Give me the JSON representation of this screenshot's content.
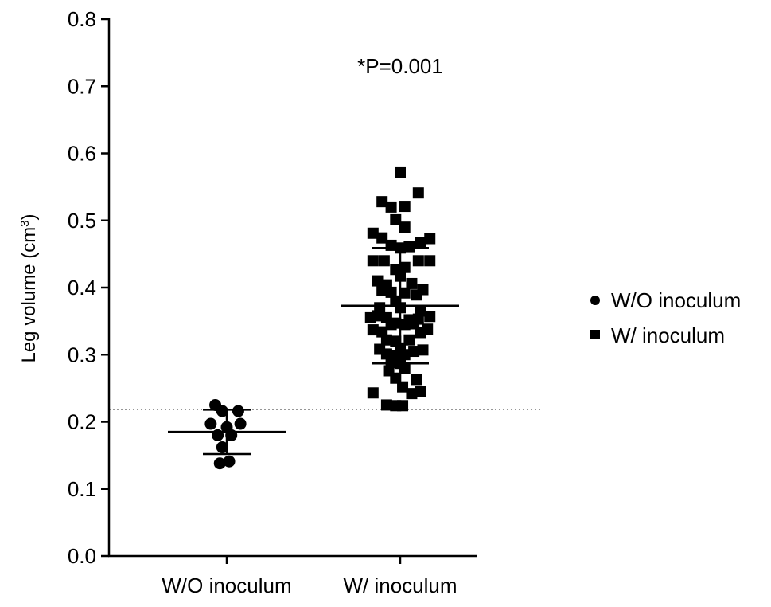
{
  "chart_data": {
    "type": "scatter",
    "subtype": "dot-plot with mean and standard deviation",
    "title": "",
    "annotation": "*P=0.001",
    "xlabel": "",
    "ylabel_main": "Leg volume (cm",
    "ylabel_sup": "3",
    "ylabel_close": ")",
    "ylim": [
      0.0,
      0.8
    ],
    "yticks": [
      "0.0",
      "0.1",
      "0.2",
      "0.3",
      "0.4",
      "0.5",
      "0.6",
      "0.7",
      "0.8"
    ],
    "categories": [
      "W/O inoculum",
      "W/ inoculum"
    ],
    "threshold_line": 0.218,
    "legend": {
      "position": "right",
      "entries": [
        {
          "label": "W/O inoculum",
          "marker": "circle"
        },
        {
          "label": "W/ inoculum",
          "marker": "square"
        }
      ]
    },
    "series": [
      {
        "name": "W/O inoculum",
        "marker": "circle",
        "mean": 0.185,
        "sd_upper": 0.218,
        "sd_lower": 0.152,
        "points": [
          {
            "offset": -0.38,
            "y": 0.225
          },
          {
            "offset": -0.15,
            "y": 0.216
          },
          {
            "offset": 0.38,
            "y": 0.216
          },
          {
            "offset": -0.53,
            "y": 0.197
          },
          {
            "offset": 0.0,
            "y": 0.192
          },
          {
            "offset": 0.45,
            "y": 0.197
          },
          {
            "offset": -0.3,
            "y": 0.18
          },
          {
            "offset": 0.15,
            "y": 0.18
          },
          {
            "offset": -0.15,
            "y": 0.162
          },
          {
            "offset": -0.23,
            "y": 0.138
          },
          {
            "offset": 0.08,
            "y": 0.141
          }
        ]
      },
      {
        "name": "W/ inoculum",
        "marker": "square",
        "mean": 0.373,
        "sd_upper": 0.459,
        "sd_lower": 0.287,
        "points": [
          {
            "offset": 0.0,
            "y": 0.571
          },
          {
            "offset": 0.6,
            "y": 0.541
          },
          {
            "offset": -0.6,
            "y": 0.528
          },
          {
            "offset": -0.3,
            "y": 0.52
          },
          {
            "offset": 0.15,
            "y": 0.521
          },
          {
            "offset": -0.15,
            "y": 0.501
          },
          {
            "offset": 0.15,
            "y": 0.49
          },
          {
            "offset": -0.9,
            "y": 0.481
          },
          {
            "offset": 0.98,
            "y": 0.473
          },
          {
            "offset": -0.6,
            "y": 0.474
          },
          {
            "offset": 0.68,
            "y": 0.467
          },
          {
            "offset": -0.3,
            "y": 0.463
          },
          {
            "offset": 0.0,
            "y": 0.459
          },
          {
            "offset": 0.3,
            "y": 0.461
          },
          {
            "offset": -0.9,
            "y": 0.44
          },
          {
            "offset": -0.53,
            "y": 0.44
          },
          {
            "offset": 0.6,
            "y": 0.44
          },
          {
            "offset": 0.98,
            "y": 0.44
          },
          {
            "offset": -0.15,
            "y": 0.427
          },
          {
            "offset": 0.15,
            "y": 0.43
          },
          {
            "offset": -0.75,
            "y": 0.41
          },
          {
            "offset": 0.0,
            "y": 0.417
          },
          {
            "offset": -0.45,
            "y": 0.404
          },
          {
            "offset": 0.38,
            "y": 0.406
          },
          {
            "offset": 0.75,
            "y": 0.397
          },
          {
            "offset": -0.6,
            "y": 0.396
          },
          {
            "offset": -0.3,
            "y": 0.393
          },
          {
            "offset": 0.15,
            "y": 0.392
          },
          {
            "offset": 0.53,
            "y": 0.389
          },
          {
            "offset": -0.15,
            "y": 0.38
          },
          {
            "offset": 0.0,
            "y": 0.37
          },
          {
            "offset": -0.68,
            "y": 0.37
          },
          {
            "offset": 0.68,
            "y": 0.365
          },
          {
            "offset": -0.98,
            "y": 0.355
          },
          {
            "offset": -0.75,
            "y": 0.358
          },
          {
            "offset": -0.45,
            "y": 0.355
          },
          {
            "offset": 0.3,
            "y": 0.352
          },
          {
            "offset": 0.6,
            "y": 0.353
          },
          {
            "offset": 0.98,
            "y": 0.357
          },
          {
            "offset": -0.3,
            "y": 0.345
          },
          {
            "offset": -0.15,
            "y": 0.347
          },
          {
            "offset": 0.15,
            "y": 0.345
          },
          {
            "offset": 0.45,
            "y": 0.346
          },
          {
            "offset": -0.9,
            "y": 0.337
          },
          {
            "offset": -0.6,
            "y": 0.334
          },
          {
            "offset": 0.68,
            "y": 0.333
          },
          {
            "offset": 0.9,
            "y": 0.338
          },
          {
            "offset": -0.45,
            "y": 0.322
          },
          {
            "offset": -0.15,
            "y": 0.32
          },
          {
            "offset": 0.3,
            "y": 0.322
          },
          {
            "offset": -0.68,
            "y": 0.308
          },
          {
            "offset": 0.0,
            "y": 0.31
          },
          {
            "offset": 0.45,
            "y": 0.305
          },
          {
            "offset": 0.75,
            "y": 0.307
          },
          {
            "offset": -0.45,
            "y": 0.301
          },
          {
            "offset": -0.15,
            "y": 0.298
          },
          {
            "offset": 0.15,
            "y": 0.3
          },
          {
            "offset": -0.3,
            "y": 0.288
          },
          {
            "offset": 0.0,
            "y": 0.287
          },
          {
            "offset": -0.38,
            "y": 0.276
          },
          {
            "offset": 0.15,
            "y": 0.28
          },
          {
            "offset": -0.15,
            "y": 0.265
          },
          {
            "offset": 0.53,
            "y": 0.263
          },
          {
            "offset": 0.08,
            "y": 0.252
          },
          {
            "offset": -0.9,
            "y": 0.243
          },
          {
            "offset": 0.38,
            "y": 0.242
          },
          {
            "offset": 0.68,
            "y": 0.245
          },
          {
            "offset": -0.45,
            "y": 0.225
          },
          {
            "offset": -0.15,
            "y": 0.224
          },
          {
            "offset": 0.08,
            "y": 0.224
          }
        ]
      }
    ]
  }
}
